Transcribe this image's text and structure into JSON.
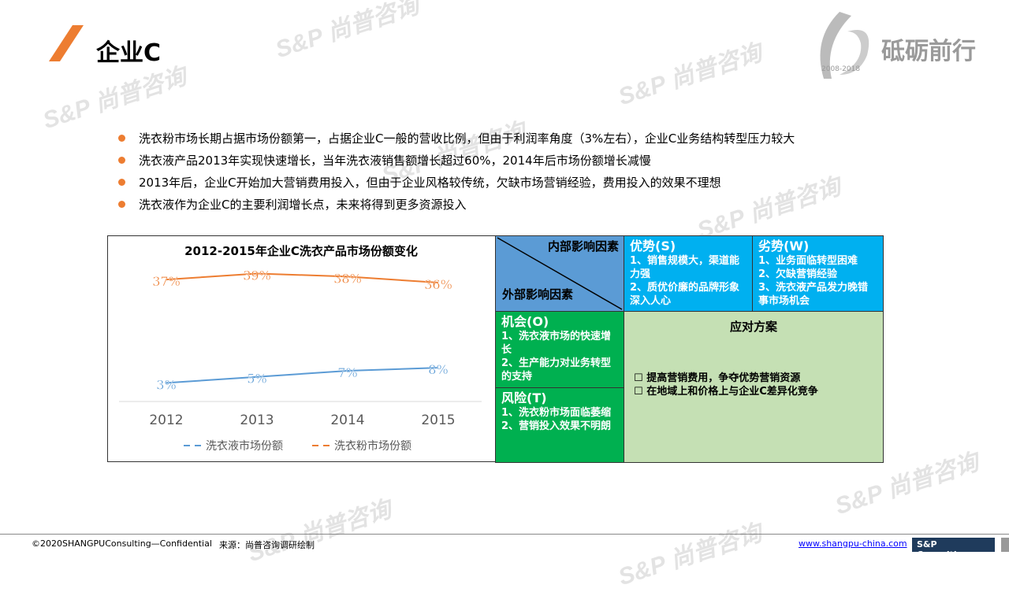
{
  "header": {
    "title": "企业C",
    "brand_text": "砥砺前行",
    "brand_years": "2008-2018",
    "watermark": "S&P 尚普咨询"
  },
  "bullets": [
    "洗衣粉市场长期占据市场份额第一，占据企业C一般的营收比例，但由于利润率角度（3%左右），企业C业务结构转型压力较大",
    "洗衣液产品2013年实现快速增长，当年洗衣液销售额增长超过60%，2014年后市场份额增长减慢",
    "2013年后，企业C开始加大营销费用投入，但由于企业风格较传统，欠缺市场营销经验，费用投入的效果不理想",
    "洗衣液作为企业C的主要利润增长点，未来将得到更多资源投入"
  ],
  "chart_data": {
    "type": "line",
    "title": "2012-2015年企业C洗衣产品市场份额变化",
    "categories": [
      "2012",
      "2013",
      "2014",
      "2015"
    ],
    "series": [
      {
        "name": "洗衣液市场份额",
        "values": [
          3,
          5,
          7,
          8
        ],
        "labels": [
          "3%",
          "5%",
          "7%",
          "8%"
        ],
        "color": "#5b9bd5"
      },
      {
        "name": "洗衣粉市场份额",
        "values": [
          37,
          39,
          38,
          36
        ],
        "labels": [
          "37%",
          "39%",
          "38%",
          "36%"
        ],
        "color": "#ed7d31"
      }
    ],
    "legend": "bottom",
    "grid": false
  },
  "swot": {
    "internal": "内部影响因素",
    "external": "外部影响因素",
    "s_title": "优势(S)",
    "s_items": "1、销售规模大，渠道能力强\n2、质优价廉的品牌形象深入人心",
    "w_title": "劣势(W)",
    "w_items": "1、业务面临转型困难\n2、欠缺营销经验\n3、洗衣液产品发力晚错事市场机会",
    "o_title": "机会(O)",
    "o_items": "1、洗衣液市场的快速增长\n2、生产能力对业务转型的支持",
    "t_title": "风险(T)",
    "t_items": "1、洗衣粉市场面临萎缩\n2、营销投入效果不明朗",
    "plan_title": "应对方案",
    "plan_items": [
      "提高营销费用，争夺优势营销资源",
      "在地域上和价格上与企业C差异化竞争"
    ]
  },
  "footer": {
    "copyright": "©2020SHANGPUConsulting—Confidential",
    "source": "来源：尚普咨询调研绘制",
    "url": "www.shangpu-china.com",
    "logo": "S&P Consulting"
  }
}
